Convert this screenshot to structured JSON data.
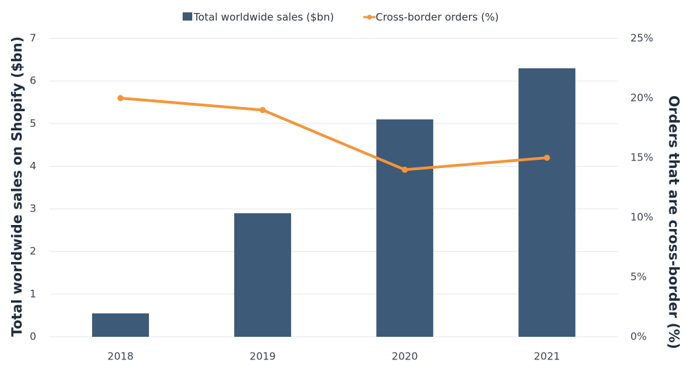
{
  "chart_data": {
    "type": "bar",
    "title": "",
    "categories": [
      "2018",
      "2019",
      "2020",
      "2021"
    ],
    "series": [
      {
        "name": "Total worldwide sales ($bn)",
        "type": "bar",
        "axis": "left",
        "color": "#3d5a78",
        "values": [
          0.55,
          2.9,
          5.1,
          6.3
        ]
      },
      {
        "name": "Cross-border orders (%)",
        "type": "line",
        "axis": "right",
        "color": "#f5953a",
        "values": [
          20,
          19,
          14,
          15
        ]
      }
    ],
    "xlabel": "",
    "ylabel": "Total worldwide sales on Shopify ($bn)",
    "y2label": "Orders that are cross-border (%)",
    "ylim": [
      0,
      7
    ],
    "y2lim": [
      0,
      25
    ],
    "yticks": [
      "0",
      "1",
      "2",
      "3",
      "4",
      "5",
      "6",
      "7"
    ],
    "y2ticks": [
      "0%",
      "5%",
      "10%",
      "15%",
      "20%",
      "25%"
    ],
    "grid": true,
    "legend": "top-center"
  }
}
